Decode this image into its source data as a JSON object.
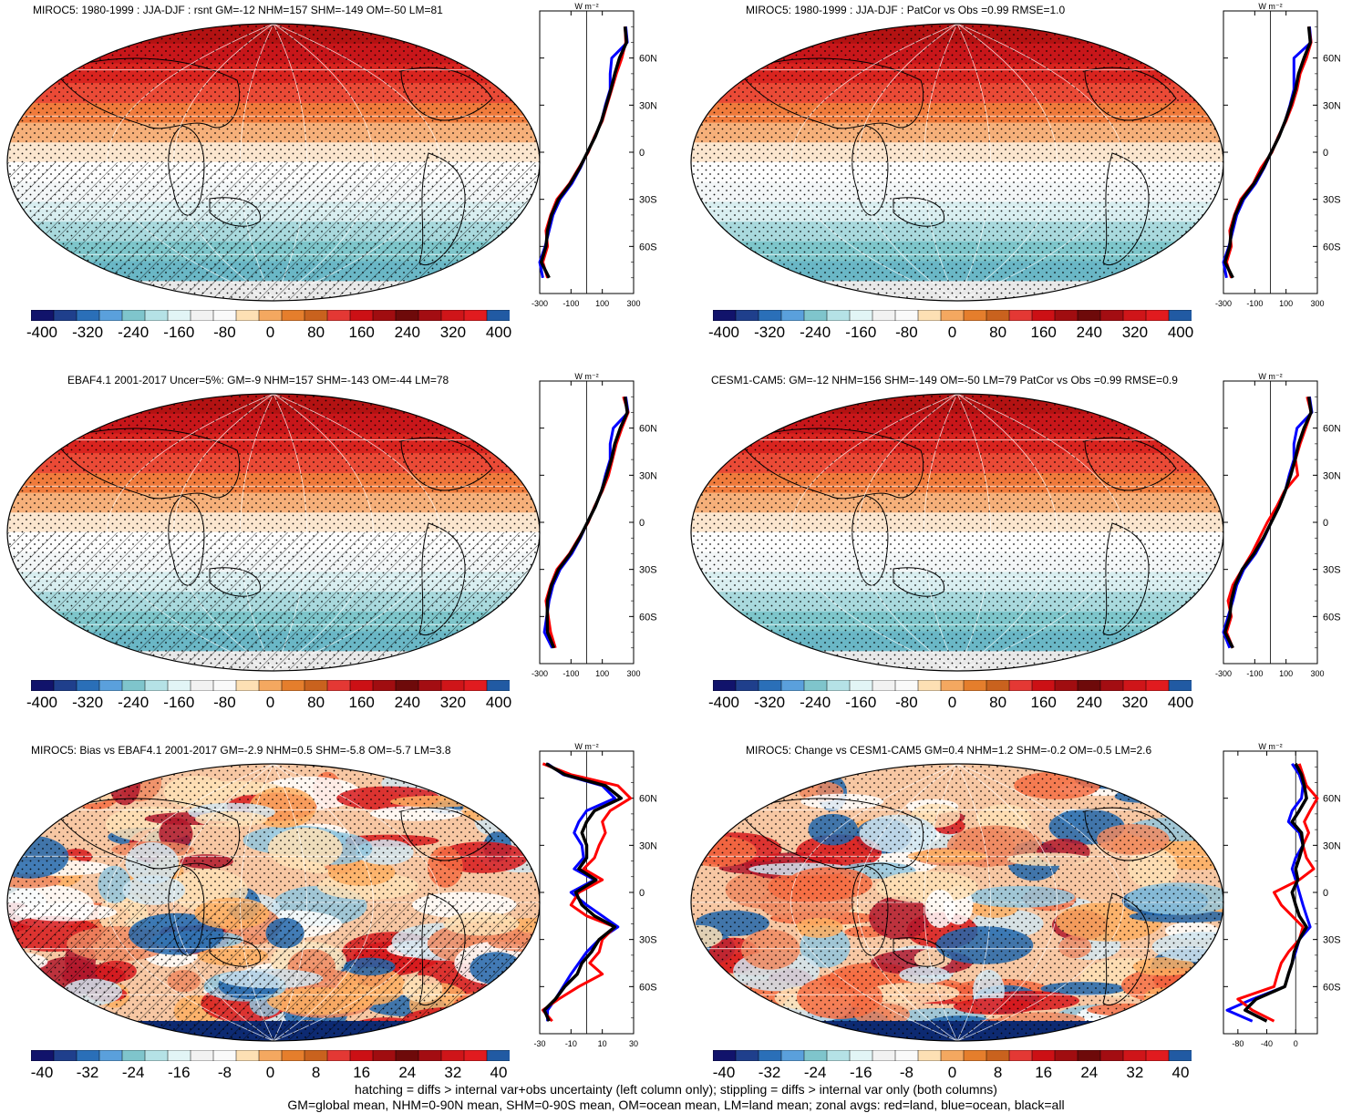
{
  "panels": [
    {
      "title": "MIROC5: 1980-1999 : JJA-DJF : rsnt GM=-12 NHM=157 SHM=-149 OM=-50 LM=81",
      "map_type": "clim",
      "hatch": true,
      "colorbar_labels": [
        "-400",
        "-320",
        "-240",
        "-160",
        "-80",
        "0",
        "80",
        "160",
        "240",
        "320",
        "400"
      ],
      "zonal_ticks": [
        "-300",
        "-100",
        "100",
        "300"
      ],
      "zonal_range": [
        -300,
        300
      ],
      "zonal_lines": {
        "lat": [
          80,
          70,
          60,
          50,
          40,
          30,
          20,
          10,
          0,
          -10,
          -20,
          -30,
          -40,
          -50,
          -60,
          -70,
          -80
        ],
        "land": [
          245,
          250,
          225,
          190,
          160,
          130,
          100,
          50,
          10,
          -50,
          -110,
          -190,
          -230,
          -260,
          -250,
          -280,
          -250
        ],
        "ocean": [
          250,
          260,
          160,
          150,
          150,
          120,
          95,
          55,
          5,
          -40,
          -95,
          -170,
          -215,
          -240,
          -265,
          -300,
          -280
        ],
        "all": [
          245,
          255,
          210,
          180,
          155,
          125,
          95,
          55,
          5,
          -45,
          -105,
          -180,
          -225,
          -250,
          -260,
          -290,
          -240
        ]
      }
    },
    {
      "title": "MIROC5: 1980-1999 : JJA-DJF : PatCor vs Obs =0.99 RMSE=1.0",
      "map_type": "clim",
      "hatch": false,
      "colorbar_labels": [
        "-400",
        "-320",
        "-240",
        "-160",
        "-80",
        "0",
        "80",
        "160",
        "240",
        "320",
        "400"
      ],
      "zonal_ticks": [
        "-300",
        "-100",
        "100",
        "300"
      ],
      "zonal_range": [
        -300,
        300
      ],
      "zonal_lines": {
        "lat": [
          80,
          70,
          60,
          50,
          40,
          30,
          20,
          10,
          0,
          -10,
          -20,
          -30,
          -40,
          -50,
          -60,
          -70,
          -80
        ],
        "land": [
          245,
          260,
          230,
          190,
          170,
          140,
          100,
          50,
          10,
          -60,
          -110,
          -190,
          -230,
          -260,
          -250,
          -280,
          -250
        ],
        "ocean": [
          250,
          260,
          150,
          150,
          150,
          125,
          95,
          55,
          5,
          -40,
          -95,
          -170,
          -215,
          -240,
          -265,
          -300,
          -280
        ],
        "all": [
          245,
          255,
          215,
          180,
          160,
          130,
          95,
          55,
          5,
          -45,
          -105,
          -180,
          -225,
          -250,
          -260,
          -290,
          -240
        ]
      }
    },
    {
      "title": "EBAF4.1 2001-2017 Uncer=5%: GM=-9 NHM=157 SHM=-143 OM=-44 LM=78",
      "map_type": "clim",
      "hatch": true,
      "colorbar_labels": [
        "-400",
        "-320",
        "-240",
        "-160",
        "-80",
        "0",
        "80",
        "160",
        "240",
        "320",
        "400"
      ],
      "zonal_ticks": [
        "-300",
        "-100",
        "100",
        "300"
      ],
      "zonal_range": [
        -300,
        300
      ],
      "zonal_lines": {
        "lat": [
          80,
          70,
          60,
          50,
          40,
          30,
          20,
          10,
          0,
          -10,
          -20,
          -30,
          -40,
          -50,
          -60,
          -70,
          -80
        ],
        "land": [
          235,
          265,
          225,
          190,
          165,
          140,
          100,
          50,
          10,
          -50,
          -110,
          -190,
          -230,
          -260,
          -245,
          -230,
          -200
        ],
        "ocean": [
          250,
          265,
          170,
          150,
          150,
          120,
          95,
          55,
          5,
          -40,
          -95,
          -170,
          -215,
          -240,
          -255,
          -270,
          -220
        ],
        "all": [
          245,
          260,
          215,
          180,
          158,
          128,
          95,
          55,
          5,
          -45,
          -105,
          -180,
          -225,
          -250,
          -252,
          -250,
          -210
        ]
      }
    },
    {
      "title": "CESM1-CAM5: GM=-12 NHM=156 SHM=-149 OM=-50 LM=79 PatCor vs Obs =0.99 RMSE=0.9",
      "map_type": "clim",
      "hatch": false,
      "colorbar_labels": [
        "-400",
        "-320",
        "-240",
        "-160",
        "-80",
        "0",
        "80",
        "160",
        "240",
        "320",
        "400"
      ],
      "zonal_ticks": [
        "-300",
        "-100",
        "100",
        "300"
      ],
      "zonal_range": [
        -300,
        300
      ],
      "zonal_lines": {
        "lat": [
          80,
          70,
          60,
          50,
          40,
          30,
          20,
          10,
          0,
          -10,
          -20,
          -30,
          -40,
          -50,
          -60,
          -70,
          -80
        ],
        "land": [
          235,
          260,
          225,
          190,
          160,
          175,
          90,
          40,
          -20,
          -70,
          -120,
          -180,
          -240,
          -270,
          -250,
          -280,
          -240
        ],
        "ocean": [
          250,
          265,
          170,
          150,
          150,
          120,
          95,
          55,
          5,
          -40,
          -95,
          -170,
          -215,
          -240,
          -270,
          -300,
          -260
        ],
        "all": [
          245,
          260,
          215,
          180,
          158,
          130,
          95,
          55,
          5,
          -45,
          -105,
          -180,
          -225,
          -250,
          -260,
          -290,
          -240
        ]
      }
    },
    {
      "title": "MIROC5: Bias vs EBAF4.1 2001-2017 GM=-2.9 NHM=0.5 SHM=-5.8 OM=-5.7 LM=3.8",
      "map_type": "bias",
      "hatch": true,
      "colorbar_labels": [
        "-40",
        "-32",
        "-24",
        "-16",
        "-8",
        "0",
        "8",
        "16",
        "24",
        "32",
        "40"
      ],
      "zonal_ticks": [
        "-30",
        "-10",
        "10",
        "30"
      ],
      "zonal_range": [
        -30,
        30
      ],
      "zonal_lines": {
        "lat": [
          82,
          75,
          68,
          60,
          52,
          45,
          38,
          30,
          22,
          15,
          8,
          0,
          -8,
          -15,
          -22,
          -30,
          -38,
          -45,
          -52,
          -60,
          -68,
          -75,
          -82
        ],
        "land": [
          -28,
          -10,
          20,
          28,
          15,
          10,
          12,
          8,
          5,
          -2,
          10,
          -5,
          -10,
          0,
          18,
          10,
          8,
          2,
          10,
          -5,
          -18,
          -28,
          -22
        ],
        "ocean": [
          -25,
          -15,
          10,
          18,
          0,
          -5,
          -8,
          -3,
          -2,
          -8,
          5,
          -10,
          0,
          10,
          20,
          8,
          0,
          -5,
          -10,
          -15,
          -20,
          -25,
          -25
        ],
        "all": [
          -26,
          -14,
          12,
          22,
          5,
          0,
          -3,
          0,
          0,
          -5,
          6,
          -7,
          -3,
          5,
          18,
          8,
          3,
          -3,
          -6,
          -14,
          -20,
          -27,
          -24
        ]
      }
    },
    {
      "title": "MIROC5: Change vs CESM1-CAM5 GM=0.4 NHM=1.2 SHM=-0.2 OM=-0.5 LM=2.6",
      "map_type": "bias",
      "hatch": false,
      "colorbar_labels": [
        "-40",
        "-32",
        "-24",
        "-16",
        "-8",
        "0",
        "8",
        "16",
        "24",
        "32",
        "40"
      ],
      "zonal_ticks": [
        "-80",
        "-40",
        "0"
      ],
      "zonal_range": [
        -100,
        30
      ],
      "zonal_lines": {
        "lat": [
          82,
          75,
          68,
          60,
          52,
          45,
          38,
          30,
          22,
          15,
          8,
          0,
          -8,
          -15,
          -22,
          -30,
          -38,
          -45,
          -52,
          -60,
          -68,
          -75,
          -82
        ],
        "land": [
          5,
          10,
          15,
          30,
          20,
          12,
          18,
          10,
          15,
          25,
          5,
          -30,
          -20,
          -5,
          10,
          5,
          -10,
          -20,
          -25,
          -30,
          -80,
          -60,
          -30
        ],
        "ocean": [
          -5,
          5,
          10,
          8,
          -5,
          -10,
          5,
          10,
          0,
          -5,
          0,
          5,
          10,
          15,
          20,
          5,
          0,
          -5,
          -10,
          -15,
          -60,
          -95,
          -60
        ],
        "all": [
          0,
          8,
          12,
          15,
          5,
          -5,
          8,
          10,
          5,
          0,
          3,
          -5,
          0,
          5,
          15,
          5,
          -2,
          -5,
          -10,
          -15,
          -55,
          -70,
          -40
        ]
      }
    }
  ],
  "zonal_lat_labels": [
    "60N",
    "30N",
    "0",
    "30S",
    "60S"
  ],
  "zonal_unit": "W m⁻²",
  "colors": {
    "clim_colorbar": [
      "#11136b",
      "#1f3f8c",
      "#2a6fb8",
      "#5aa0dc",
      "#7fc5cc",
      "#b5e2e6",
      "#e2f5f6",
      "#f2f2f2",
      "#fafafa",
      "#fde0b4",
      "#f4a860",
      "#e57e2c",
      "#c9621e",
      "#e43834",
      "#cc1015",
      "#a00d10",
      "#6e0a0a",
      "#a30d12",
      "#cf1519",
      "#e11b1f",
      "#215aa3"
    ],
    "land": "#ff0000",
    "ocean": "#0000ff",
    "all": "#000000"
  },
  "footer": {
    "line1": "hatching = diffs > internal var+obs uncertainty (left column only); stippling = diffs > internal var only (both columns)",
    "line2": "GM=global mean, NHM=0-90N mean, SHM=0-90S mean, OM=ocean mean, LM=land mean; zonal avgs: red=land, blue=ocean, black=all"
  }
}
